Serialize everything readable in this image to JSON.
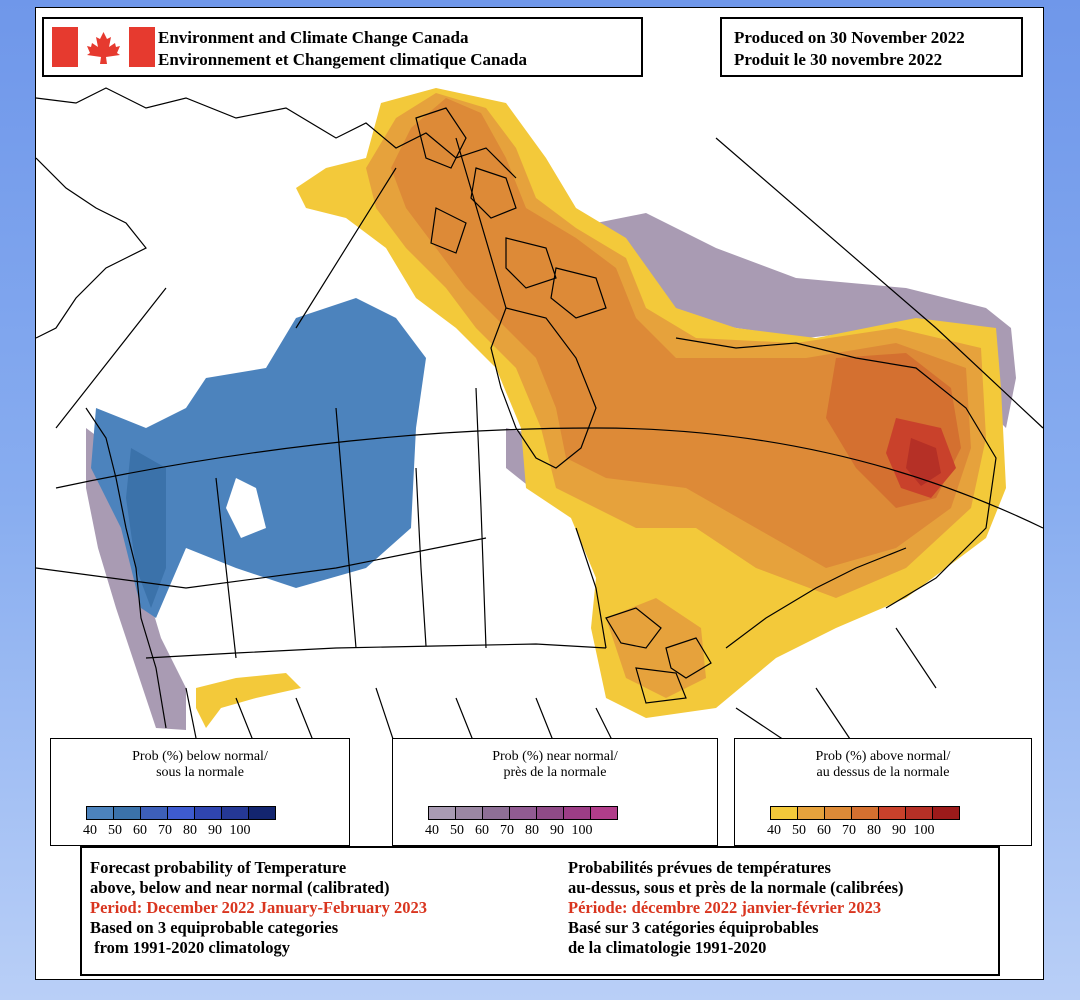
{
  "agency": {
    "name_en": "Environment and Climate Change Canada",
    "name_fr": "Environnement et Changement climatique Canada",
    "flag_colors": {
      "red": "#e63a2f",
      "white": "#ffffff"
    }
  },
  "produced": {
    "en": "Produced on 30 November 2022",
    "fr": "Produit le 30 novembre 2022"
  },
  "legends": [
    {
      "id": "below",
      "title_en": "Prob (%) below normal/",
      "title_fr": "sous la normale",
      "colors": [
        "#4c83bd",
        "#3b72aa",
        "#3d5fb9",
        "#3e5bd0",
        "#2f45b0",
        "#253895",
        "#13256f"
      ],
      "ticks": [
        "40",
        "50",
        "60",
        "70",
        "80",
        "90",
        "100"
      ]
    },
    {
      "id": "near",
      "title_en": "Prob (%) near normal/",
      "title_fr": "près de la normale",
      "colors": [
        "#a99bb3",
        "#9b87a3",
        "#8e6f96",
        "#915b92",
        "#8f4a87",
        "#9c3d86",
        "#b13d8a"
      ],
      "ticks": [
        "40",
        "50",
        "60",
        "70",
        "80",
        "90",
        "100"
      ]
    },
    {
      "id": "above",
      "title_en": "Prob (%) above normal/",
      "title_fr": "au dessus de la normale",
      "colors": [
        "#f3c93a",
        "#e6a23c",
        "#dd8a37",
        "#d47030",
        "#c9412b",
        "#b53026",
        "#9c1a1a"
      ],
      "ticks": [
        "40",
        "50",
        "60",
        "70",
        "80",
        "90",
        "100"
      ]
    }
  ],
  "description": {
    "en": {
      "line1": "Forecast probability of Temperature",
      "line2": "above, below and near normal (calibrated)",
      "period": "Period: December 2022 January-February 2023",
      "line4": "Based on 3 equiprobable categories",
      "line5": " from 1991-2020 climatology"
    },
    "fr": {
      "line1": "Probabilités prévues de températures",
      "line2": "au-dessus, sous et près de la normale (calibrées)",
      "period": "Période: décembre 2022 janvier-février 2023",
      "line4": "Basé sur 3 catégories équiprobables",
      "line5": "de la climatologie 1991-2020"
    }
  },
  "map_colors": {
    "above_40": "#f3c93a",
    "above_50": "#e6a23c",
    "above_60": "#dd8a37",
    "above_70": "#d47030",
    "above_80": "#c9412b",
    "above_90": "#b53026",
    "below_40": "#4c83bd",
    "below_50": "#3b72aa",
    "near_40": "#a99bb3",
    "outline": "#000000"
  }
}
